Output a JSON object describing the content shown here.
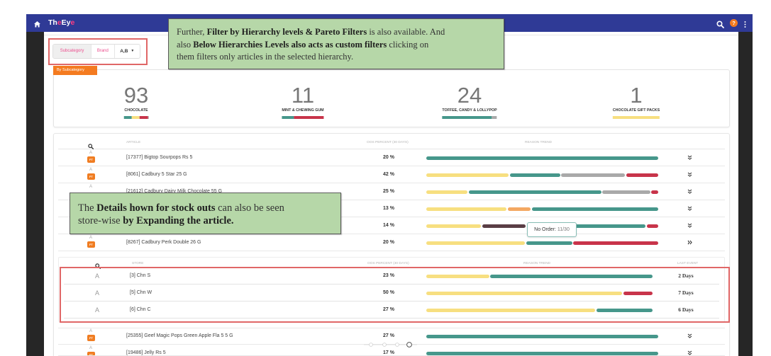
{
  "header": {
    "logo": {
      "part1": "Th",
      "part2": "e",
      "part3": "Ey",
      "part4": "e"
    },
    "help_label": "?"
  },
  "filters": {
    "options": [
      "Subcategory",
      "Brand"
    ],
    "pareto_value": "A,B"
  },
  "kpi": {
    "tab_label": "By Subcategory",
    "items": [
      {
        "value": "93",
        "label": "CHOCOLATE",
        "segments": [
          {
            "color": "teal",
            "share": 31
          },
          {
            "color": "yellow",
            "share": 34
          },
          {
            "color": "red",
            "share": 33
          },
          {
            "color": "gray",
            "share": 2
          }
        ]
      },
      {
        "value": "11",
        "label": "MINT & CHEWING GUM",
        "segments": [
          {
            "color": "teal",
            "share": 29
          },
          {
            "color": "red",
            "share": 71
          }
        ]
      },
      {
        "value": "24",
        "label": "TOFFEE, CANDY & LOLLYPOP",
        "segments": [
          {
            "color": "teal",
            "share": 91
          },
          {
            "color": "gray",
            "share": 9
          }
        ]
      },
      {
        "value": "1",
        "label": "CHOCOLATE GIFT PACKS",
        "segments": [
          {
            "color": "yellow",
            "share": 100
          }
        ]
      }
    ]
  },
  "table": {
    "headers": {
      "article": "ARTICLE",
      "oos": "OOS PERCENT (30 DAYS)",
      "trend": "REASON TREND"
    },
    "rows": [
      {
        "grade": "A",
        "badge": "FT",
        "name": "[17377] Bigtop Sourpops Rs 5",
        "oos": "20 %",
        "segments": [
          {
            "color": "teal",
            "share": 100
          }
        ]
      },
      {
        "grade": "A",
        "badge": "FT",
        "name": "[8061] Cadbury 5 Star 25 G",
        "oos": "42 %",
        "segments": [
          {
            "color": "yellow",
            "share": 36
          },
          {
            "color": "teal",
            "share": 22
          },
          {
            "color": "gray",
            "share": 28
          },
          {
            "color": "red",
            "share": 14
          }
        ]
      },
      {
        "grade": "A",
        "name": "[21612] Cadbury Dairy Milk Chocolate 55 G",
        "oos": "25 %",
        "segments": [
          {
            "color": "yellow",
            "share": 18
          },
          {
            "color": "teal",
            "share": 58
          },
          {
            "color": "gray",
            "share": 21
          },
          {
            "color": "red",
            "share": 3
          }
        ]
      },
      {
        "oos": "13 %",
        "segments": [
          {
            "color": "yellow",
            "share": 35
          },
          {
            "color": "orange",
            "share": 10
          },
          {
            "color": "teal",
            "share": 55
          }
        ]
      },
      {
        "oos": "14 %",
        "segments": [
          {
            "color": "yellow",
            "share": 24
          },
          {
            "color": "dark",
            "share": 19
          },
          {
            "color": "teal",
            "share": 52
          },
          {
            "color": "red",
            "share": 5
          }
        ]
      },
      {
        "grade": "A",
        "badge": "FT",
        "name": "[8267] Cadbury Perk Double 26 G",
        "oos": "20 %",
        "expanded": true,
        "segments": [
          {
            "color": "yellow",
            "share": 43
          },
          {
            "color": "teal",
            "share": 20
          },
          {
            "color": "red",
            "share": 37
          }
        ]
      },
      {
        "grade": "A",
        "badge": "FT",
        "name": "[25355] Geef Magic Pops Green Apple Fla 5 5 G",
        "oos": "27 %",
        "segments": [
          {
            "color": "teal",
            "share": 100
          }
        ]
      },
      {
        "grade": "A",
        "badge": "FT",
        "name": "[19486] Jelly Rs 5",
        "oos": "17 %",
        "segments": [
          {
            "color": "teal",
            "share": 100
          }
        ]
      }
    ]
  },
  "store_table": {
    "headers": {
      "store": "STORE",
      "oos": "OOS PERCENT (30 DAYS)",
      "trend": "REASON TREND",
      "last_event": "LAST EVENT"
    },
    "rows": [
      {
        "grade": "A",
        "name": "[3] Chn S",
        "oos": "23 %",
        "last_event": "2 Days",
        "segments": [
          {
            "color": "yellow",
            "share": 28
          },
          {
            "color": "teal",
            "share": 72
          }
        ]
      },
      {
        "grade": "A",
        "name": "[5] Chn W",
        "oos": "50 %",
        "last_event": "7 Days",
        "segments": [
          {
            "color": "yellow",
            "share": 87
          },
          {
            "color": "red",
            "share": 13
          }
        ]
      },
      {
        "grade": "A",
        "name": "[6] Chn C",
        "oos": "27 %",
        "last_event": "6 Days",
        "segments": [
          {
            "color": "yellow",
            "share": 75
          },
          {
            "color": "teal",
            "share": 25
          }
        ]
      }
    ]
  },
  "tooltip": {
    "label": "No Order:",
    "value": " 11/30"
  },
  "callouts": {
    "filters": {
      "lines": [
        [
          "Further, ",
          "Filter by Hierarchy levels & Pareto Filters",
          " is also available. And"
        ],
        [
          "also ",
          "Below Hierarchies Levels also acts as custom filters",
          " clicking on"
        ],
        [
          "them filters only articles in the selected hierarchy."
        ]
      ]
    },
    "expand": {
      "lines": [
        [
          "The ",
          "Details hown for stock outs",
          " can also be seen"
        ],
        [
          "store-wise ",
          "by Expanding the article."
        ]
      ]
    }
  },
  "colors": {
    "teal": "#46978b",
    "yellow": "#f7df80",
    "gray": "#a9a9a9",
    "red": "#c8344a",
    "orange": "#f4a862",
    "dark": "#5a3e45",
    "brand_navy": "#2f3a96",
    "accent_orange": "#f47b20",
    "brand_pink": "#ec4f8f",
    "highlight_red": "#e06767",
    "callout_green": "#b6d7a8"
  }
}
